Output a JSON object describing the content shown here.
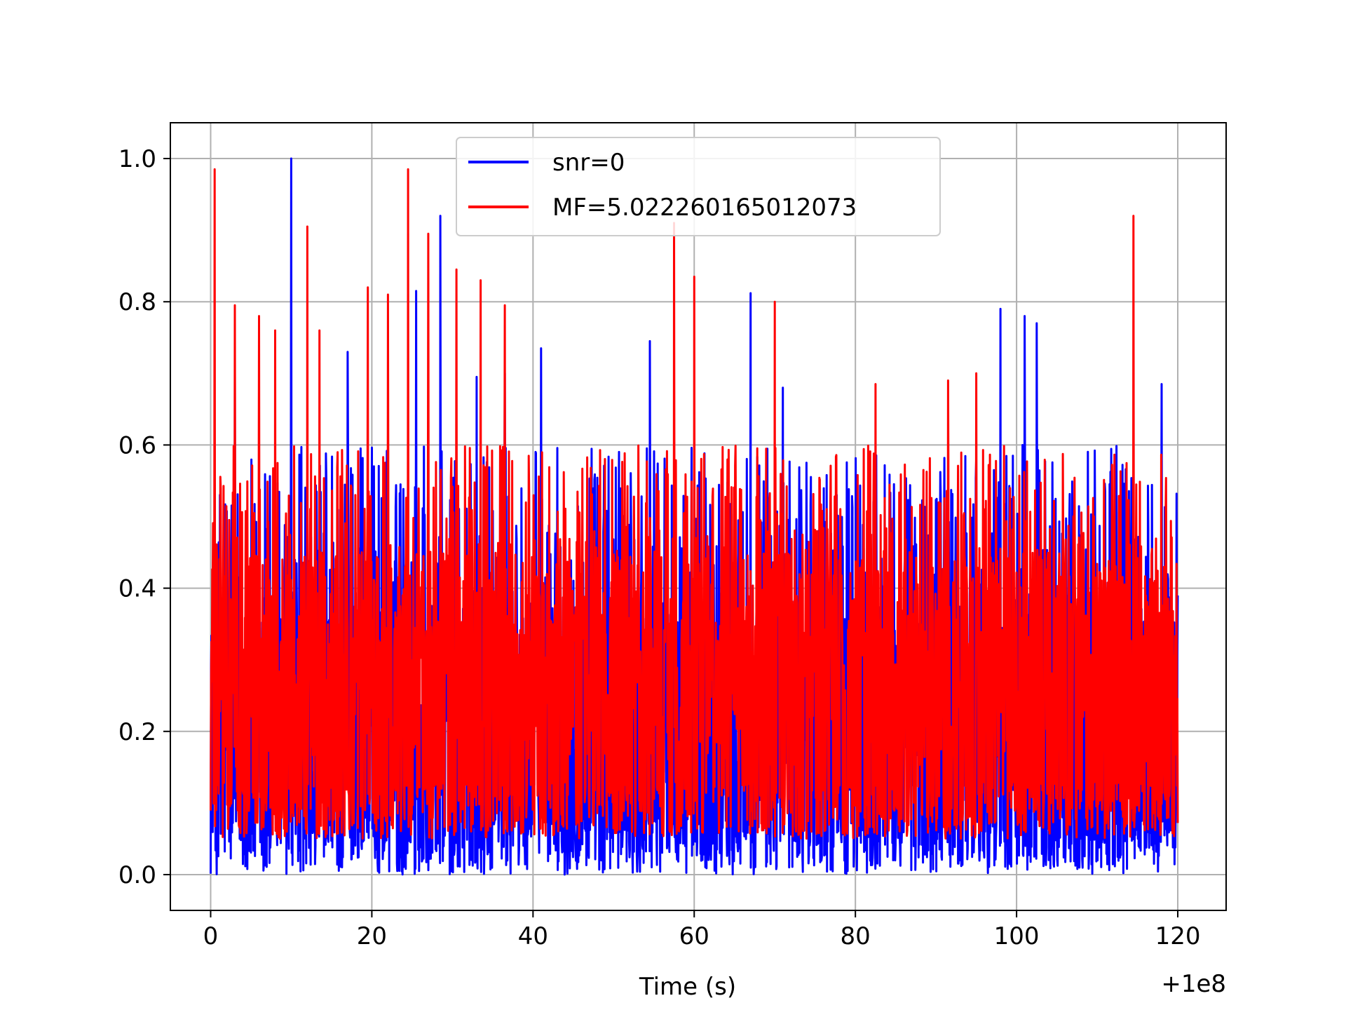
{
  "chart_data": {
    "type": "line",
    "title": "",
    "xlabel": "Time (s)",
    "ylabel": "",
    "x_offset_label": "+1e8",
    "xlim": [
      -5,
      126
    ],
    "ylim": [
      -0.05,
      1.05
    ],
    "x_ticks": [
      0,
      20,
      40,
      60,
      80,
      100,
      120
    ],
    "x_tick_labels": [
      "0",
      "20",
      "40",
      "60",
      "80",
      "100",
      "120"
    ],
    "y_ticks": [
      0.0,
      0.2,
      0.4,
      0.6,
      0.8,
      1.0
    ],
    "y_tick_labels": [
      "0.0",
      "0.2",
      "0.4",
      "0.6",
      "0.8",
      "1.0"
    ],
    "grid": true,
    "legend_position": "top-center",
    "series": [
      {
        "name": "snr=0",
        "color": "#0000ff",
        "x_range": [
          0,
          120
        ],
        "noise_floor": 0.0,
        "typical_max": 0.6,
        "peaks": [
          {
            "x": 10.0,
            "y": 1.0
          },
          {
            "x": 28.5,
            "y": 0.92
          },
          {
            "x": 25.5,
            "y": 0.815
          },
          {
            "x": 67.0,
            "y": 0.812
          },
          {
            "x": 98.0,
            "y": 0.79
          },
          {
            "x": 101.0,
            "y": 0.78
          },
          {
            "x": 102.5,
            "y": 0.77
          },
          {
            "x": 17.0,
            "y": 0.73
          },
          {
            "x": 41.0,
            "y": 0.735
          },
          {
            "x": 54.5,
            "y": 0.745
          },
          {
            "x": 3.0,
            "y": 0.7
          },
          {
            "x": 118.0,
            "y": 0.685
          },
          {
            "x": 71.0,
            "y": 0.68
          },
          {
            "x": 36.5,
            "y": 0.7
          },
          {
            "x": 33.0,
            "y": 0.695
          }
        ]
      },
      {
        "name": "MF=5.022260165012073",
        "color": "#ff0000",
        "x_range": [
          0,
          120
        ],
        "noise_floor": 0.05,
        "typical_max": 0.6,
        "peaks": [
          {
            "x": 0.5,
            "y": 0.985
          },
          {
            "x": 24.5,
            "y": 0.985
          },
          {
            "x": 114.5,
            "y": 0.92
          },
          {
            "x": 57.5,
            "y": 0.91
          },
          {
            "x": 12.0,
            "y": 0.905
          },
          {
            "x": 27.0,
            "y": 0.895
          },
          {
            "x": 30.5,
            "y": 0.845
          },
          {
            "x": 60.0,
            "y": 0.835
          },
          {
            "x": 19.5,
            "y": 0.82
          },
          {
            "x": 33.5,
            "y": 0.83
          },
          {
            "x": 22.0,
            "y": 0.81
          },
          {
            "x": 36.5,
            "y": 0.795
          },
          {
            "x": 3.0,
            "y": 0.795
          },
          {
            "x": 70.0,
            "y": 0.8
          },
          {
            "x": 6.0,
            "y": 0.78
          },
          {
            "x": 8.0,
            "y": 0.76
          },
          {
            "x": 13.5,
            "y": 0.76
          },
          {
            "x": 82.5,
            "y": 0.685
          },
          {
            "x": 91.5,
            "y": 0.69
          },
          {
            "x": 95.0,
            "y": 0.7
          }
        ]
      }
    ]
  }
}
